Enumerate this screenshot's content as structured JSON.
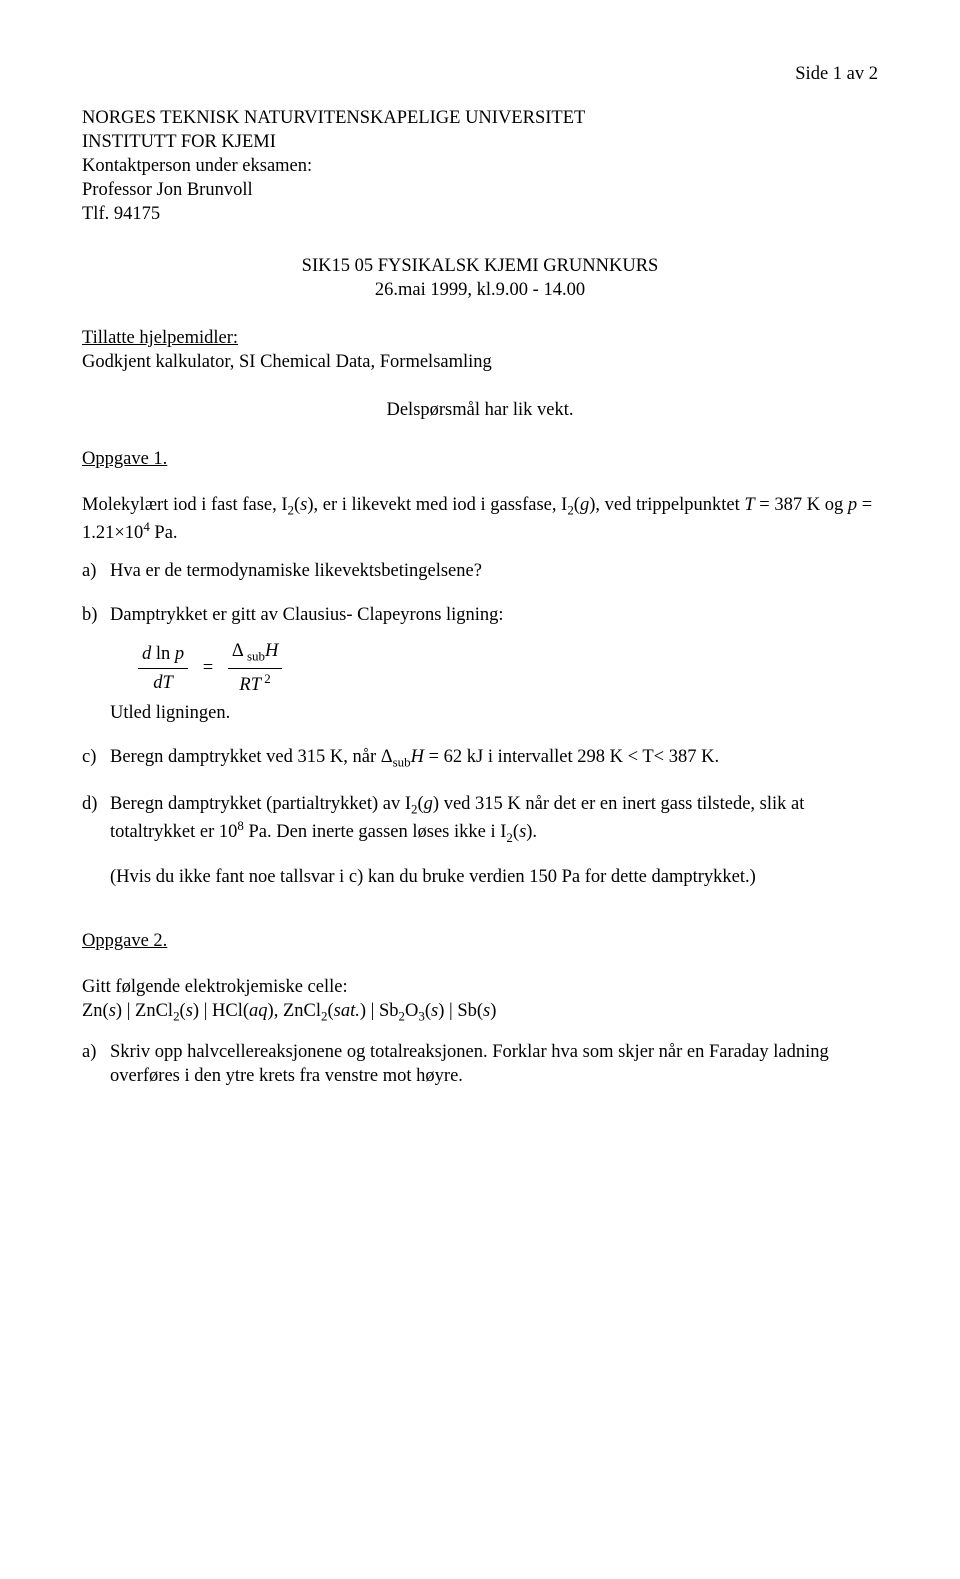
{
  "page_number": "Side 1 av 2",
  "header": {
    "l1": "NORGES TEKNISK NATURVITENSKAPELIGE UNIVERSITET",
    "l2": "INSTITUTT FOR KJEMI",
    "l3": "Kontaktperson under eksamen:",
    "l4": "Professor Jon Brunvoll",
    "l5": "Tlf. 94175"
  },
  "title": {
    "l1": "SIK15 05 FYSIKALSK KJEMI GRUNNKURS",
    "l2": "26.mai 1999, kl.9.00 - 14.00"
  },
  "aids_label": "Tillatte hjelpemidler:",
  "aids_text": "Godkjent kalkulator, SI Chemical Data, Formelsamling",
  "weight_text": "Delspørsmål har lik vekt.",
  "oppgave1_heading": "Oppgave 1.",
  "oppgave1_intro_html": "Molekylært iod i fast fase, I<sub>2</sub>(<span class=\"i\">s</span>), er i likevekt med iod i gassfase, I<sub>2</sub>(<span class=\"i\">g</span>), ved trippelpunktet <span class=\"i\">T</span> = 387 K og  <span class=\"i\">p</span> = 1.21×10<sup>4</sup> Pa.",
  "oppgave1_a_label": "a)",
  "oppgave1_a_text": "Hva er de termodynamiske likevektsbetingelsene?",
  "oppgave1_b_label": "b)",
  "oppgave1_b_text": "Damptrykket er gitt av Clausius- Clapeyrons ligning:",
  "oppgave1_b_utled": "Utled ligningen.",
  "eq": {
    "num_html": "<span class=\"i\">d</span> ln <span class=\"i\">p</span>",
    "den_left_html": "<span class=\"i\">dT</span>",
    "num_right_html": "Δ<sub class=\"small-sub\"> sub</sub><span class=\"i\">H</span>",
    "den_right_html": "<span class=\"i\">RT</span><sup> 2</sup>"
  },
  "oppgave1_c_label": "c)",
  "oppgave1_c_html": "Beregn damptrykket ved 315 K, når  Δ<sub>sub</sub><span class=\"i\">H</span> = 62 kJ i intervallet 298 K &lt; T&lt; 387 K.",
  "oppgave1_d_label": "d)",
  "oppgave1_d_html": "Beregn damptrykket (partialtrykket) av I<sub>2</sub>(<span class=\"i\">g</span>) ved 315 K når det er en inert gass tilstede, slik at totaltrykket er 10<sup>8</sup> Pa. Den inerte gassen løses ikke i I<sub>2</sub>(<span class=\"i\">s</span>).",
  "oppgave1_d_note": "(Hvis du ikke fant noe tallsvar i c) kan du bruke verdien 150 Pa for dette damptrykket.)",
  "oppgave2_heading": "Oppgave 2.",
  "oppgave2_intro": "Gitt følgende elektrokjemiske celle:",
  "oppgave2_cell_html": "Zn(<span class=\"i\">s</span>) | ZnCl<sub>2</sub>(<span class=\"i\">s</span>) | HCl(<span class=\"i\">aq</span>), ZnCl<sub>2</sub>(<span class=\"i\">sat.</span>) | Sb<sub>2</sub>O<sub>3</sub>(<span class=\"i\">s</span>) | Sb(<span class=\"i\">s</span>)",
  "oppgave2_a_label": "a)",
  "oppgave2_a_text": "Skriv opp halvcellereaksjonene og totalreaksjonen. Forklar hva som skjer når en Faraday ladning overføres i den ytre krets fra venstre mot høyre."
}
